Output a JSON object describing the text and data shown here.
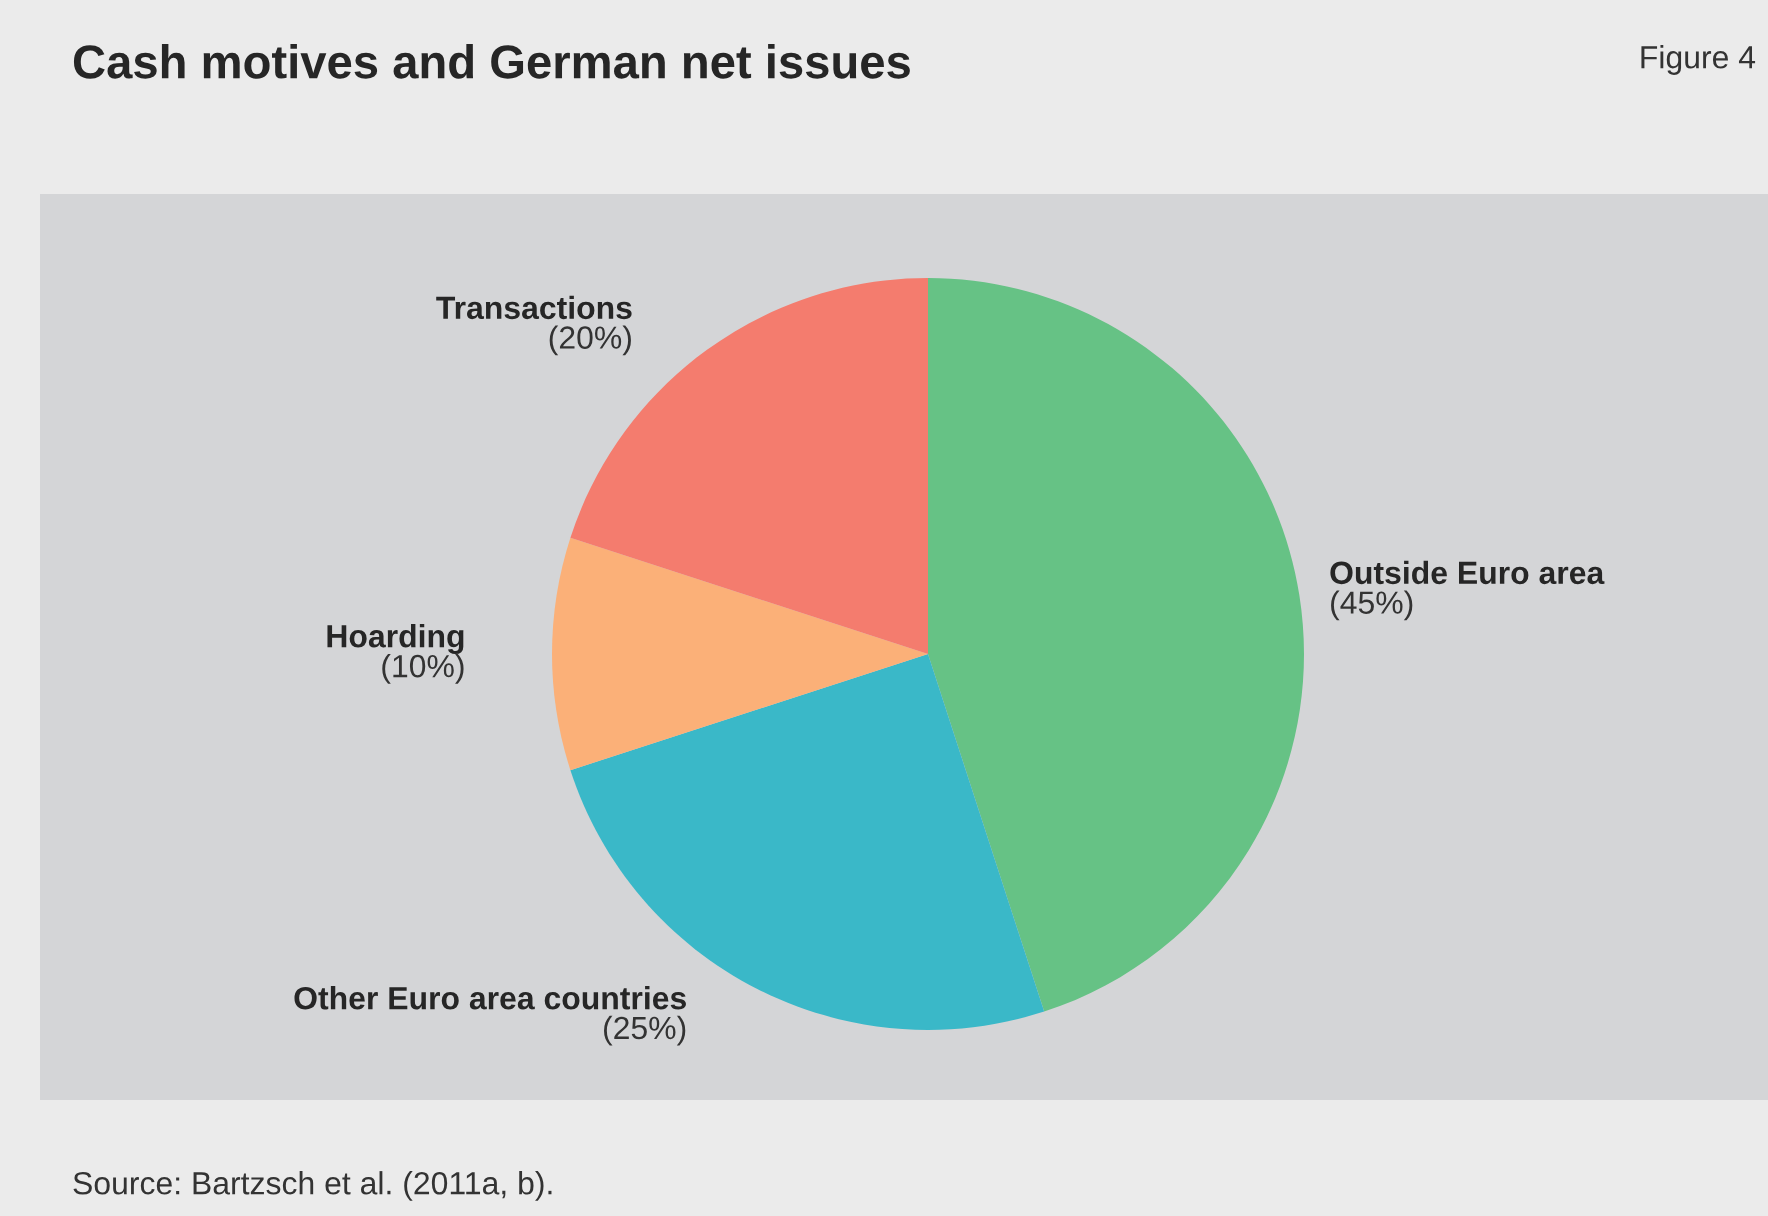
{
  "chart_data": {
    "type": "pie",
    "title": "Cash motives and German net issues",
    "categories": [
      "Outside Euro area",
      "Other Euro area countries",
      "Hoarding",
      "Transactions"
    ],
    "values": [
      45,
      25,
      10,
      20
    ],
    "value_labels": [
      "(45%)",
      "(25%)",
      "(10%)",
      "(20%)"
    ],
    "colors": [
      "#66c285",
      "#3ab8c8",
      "#fbb078",
      "#f47c6e"
    ],
    "legend": false,
    "annotations": [
      "Figure 4",
      "Source: Bartzsch et al. (2011a, b)."
    ]
  }
}
